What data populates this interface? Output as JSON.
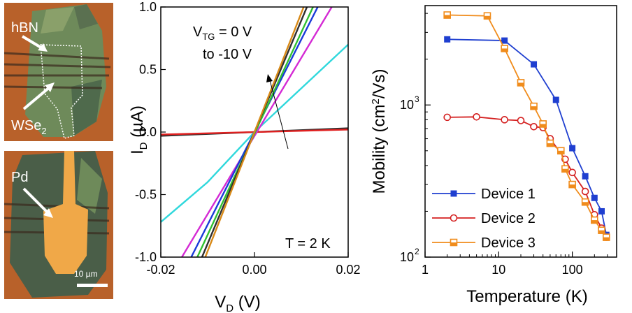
{
  "photos": {
    "top": {
      "labels": [
        "hBN",
        "WSe",
        "2"
      ],
      "note": ""
    },
    "bottom": {
      "label": "Pd",
      "scalebar": "10 µm"
    }
  },
  "colors": {
    "photo_bg": "#b8612a",
    "flake_green": "#6e8a5a",
    "flake_dark": "#4a5e48",
    "pd_gold": "#f0a848",
    "device1": "#1f3fd0",
    "device2": "#d42020",
    "device3": "#f08c1c"
  },
  "chart_data": [
    {
      "type": "line",
      "xlabel_main": "V",
      "xlabel_sub": "D",
      "xlabel_unit": " (V)",
      "ylabel_main": "I",
      "ylabel_sub": "D",
      "ylabel_unit": " (µA)",
      "xlim": [
        -0.02,
        0.02
      ],
      "ylim": [
        -1.0,
        1.0
      ],
      "xticks": [
        "-0.02",
        "0.00",
        "0.02"
      ],
      "yticks": [
        "1.0",
        "0.5",
        "0.0",
        "-0.5",
        "-1.0"
      ],
      "annotation_gate_1": "V",
      "annotation_gate_sub": "TG",
      "annotation_gate_2": " = 0 V",
      "annotation_gate_3": "to -10 V",
      "annotation_temp": "T = 2 K",
      "series": [
        {
          "color": "#303030",
          "values": [
            [
              -0.02,
              -0.03
            ],
            [
              0.02,
              0.03
            ]
          ]
        },
        {
          "color": "#e02020",
          "values": [
            [
              -0.02,
              -0.02
            ],
            [
              0.02,
              0.02
            ]
          ]
        },
        {
          "color": "#30d8dc",
          "values": [
            [
              -0.02,
              -0.72
            ],
            [
              -0.01,
              -0.4
            ],
            [
              0,
              0
            ],
            [
              0.01,
              0.35
            ],
            [
              0.02,
              0.7
            ]
          ]
        },
        {
          "color": "#d42ad4",
          "values": [
            [
              -0.0155,
              -1.0
            ],
            [
              0.0165,
              1.0
            ]
          ]
        },
        {
          "color": "#1a3bd8",
          "values": [
            [
              -0.0135,
              -1.0
            ],
            [
              0.0135,
              1.0
            ]
          ]
        },
        {
          "color": "#30c030",
          "values": [
            [
              -0.0122,
              -1.0
            ],
            [
              0.0125,
              1.0
            ]
          ]
        },
        {
          "color": "#303030",
          "values": [
            [
              -0.0112,
              -1.0
            ],
            [
              0.0112,
              1.0
            ]
          ]
        },
        {
          "color": "#d88a18",
          "values": [
            [
              -0.0105,
              -1.0
            ],
            [
              0.0105,
              1.0
            ]
          ]
        }
      ]
    },
    {
      "type": "line",
      "xlabel": "Temperature (K)",
      "ylabel_main": "Mobility (cm",
      "ylabel_sup": "2",
      "ylabel_end": "/Vs)",
      "xscale": "log",
      "yscale": "log",
      "xlim": [
        1,
        400
      ],
      "ylim": [
        100,
        4500
      ],
      "xticks": [
        "1",
        "10",
        "100"
      ],
      "yticks_main": [
        "10",
        "10"
      ],
      "yticks_exp": [
        "3",
        "2"
      ],
      "legend_position": "bottom-left",
      "series": [
        {
          "name": "Device 1",
          "marker": "filled-square",
          "color": "#1f3fd0",
          "x": [
            2,
            12,
            30,
            60,
            100,
            150,
            200,
            250,
            290
          ],
          "y": [
            2700,
            2650,
            1850,
            1080,
            520,
            340,
            245,
            200,
            140
          ]
        },
        {
          "name": "Device 2",
          "marker": "open-circle",
          "color": "#d42020",
          "x": [
            2,
            5,
            12,
            20,
            30,
            40,
            50,
            80,
            100,
            150,
            200,
            250,
            290
          ],
          "y": [
            830,
            835,
            800,
            790,
            720,
            710,
            600,
            440,
            360,
            270,
            190,
            155,
            135
          ]
        },
        {
          "name": "Device 3",
          "marker": "half-square",
          "color": "#f08c1c",
          "x": [
            2,
            7,
            12,
            20,
            30,
            40,
            50,
            70,
            80,
            100,
            150,
            200,
            250,
            290
          ],
          "y": [
            3900,
            3850,
            2350,
            1400,
            980,
            750,
            560,
            500,
            380,
            300,
            230,
            175,
            150,
            135
          ]
        }
      ]
    }
  ]
}
